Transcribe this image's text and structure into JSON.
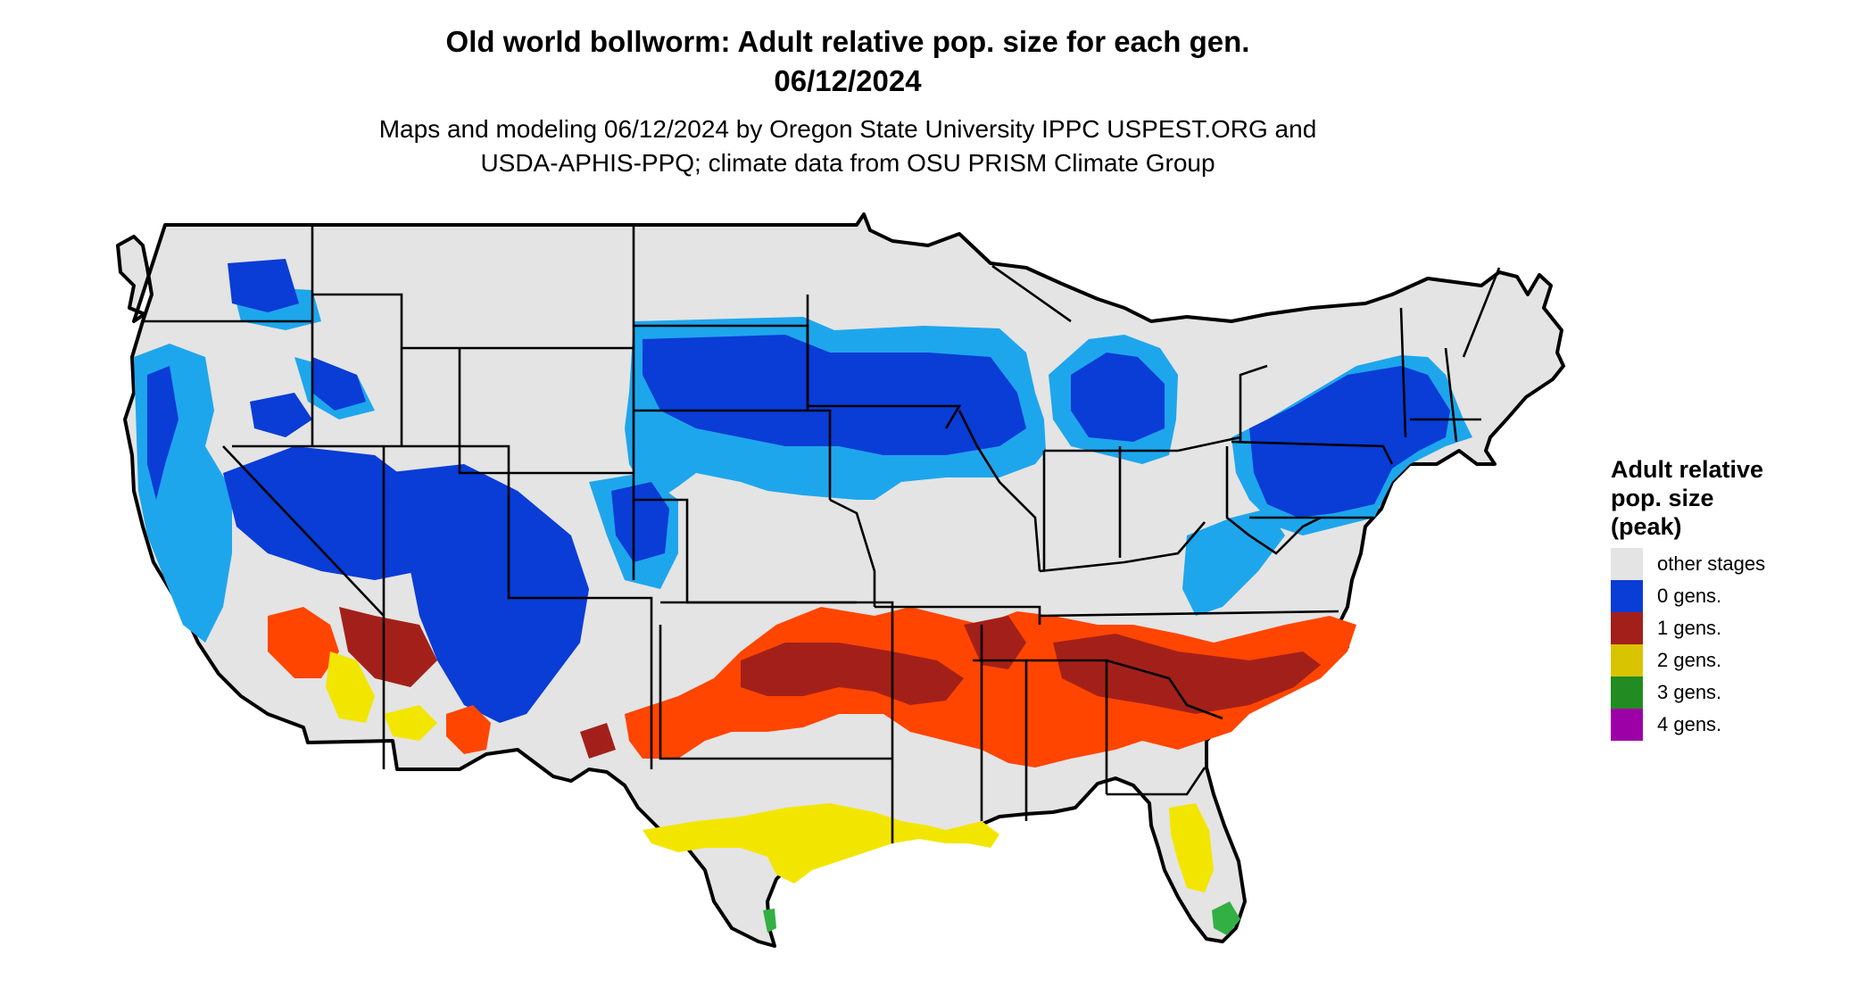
{
  "title_line1": "Old world bollworm: Adult relative pop. size for each gen.",
  "title_line2": "06/12/2024",
  "subtitle_line1": "Maps and modeling 06/12/2024 by Oregon State University IPPC USPEST.ORG and",
  "subtitle_line2": "USDA-APHIS-PPQ; climate data from OSU PRISM Climate Group",
  "legend": {
    "title": [
      "Adult relative",
      "pop. size",
      "(peak)"
    ],
    "items": [
      {
        "label": "other stages",
        "color": "#e4e4e4"
      },
      {
        "label": "0 gens.",
        "color": "#0a3cd6"
      },
      {
        "label": "1 gens.",
        "color": "#a3201a"
      },
      {
        "label": "2 gens.",
        "color": "#d8c400"
      },
      {
        "label": "3 gens.",
        "color": "#228b22"
      },
      {
        "label": "4 gens.",
        "color": "#9e00a8"
      }
    ]
  },
  "colors": {
    "background_land": "#e4e4e4",
    "zero_gens_light": "#1ea6ec",
    "zero_gens_dark": "#0a3cd6",
    "one_gen_orange": "#ff4500",
    "one_gen_dark": "#a3201a",
    "two_gens": "#f2e600",
    "three_gens": "#33b043"
  }
}
